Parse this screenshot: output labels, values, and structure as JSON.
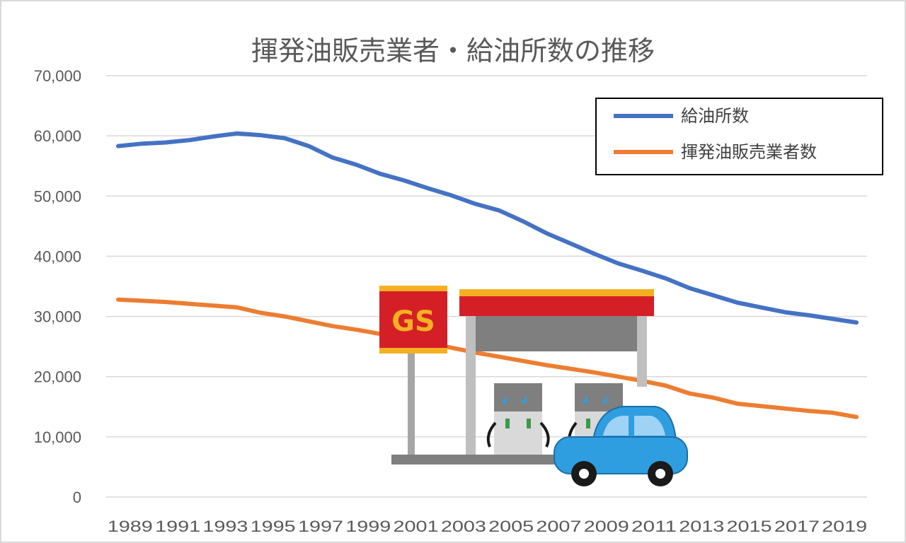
{
  "chart_data": {
    "type": "line",
    "title": "揮発油販売業者・給油所数の推移",
    "xlabel": "",
    "ylabel": "",
    "x": [
      1989,
      1990,
      1991,
      1992,
      1993,
      1994,
      1995,
      1996,
      1997,
      1998,
      1999,
      2000,
      2001,
      2002,
      2003,
      2004,
      2005,
      2006,
      2007,
      2008,
      2009,
      2010,
      2011,
      2012,
      2013,
      2014,
      2015,
      2016,
      2017,
      2018,
      2019,
      2020
    ],
    "x_tick_labels": [
      "1989",
      "1991",
      "1993",
      "1995",
      "1997",
      "1999",
      "2001",
      "2003",
      "2005",
      "2007",
      "2009",
      "2011",
      "2013",
      "2015",
      "2017",
      "2019"
    ],
    "ylim": [
      0,
      70000
    ],
    "y_ticks": [
      0,
      10000,
      20000,
      30000,
      40000,
      50000,
      60000,
      70000
    ],
    "y_tick_labels": [
      "0",
      "10,000",
      "20,000",
      "30,000",
      "40,000",
      "50,000",
      "60,000",
      "70,000"
    ],
    "grid": true,
    "legend_position": "top-right",
    "series": [
      {
        "name": "給油所数",
        "color": "#4472c4",
        "values": [
          58300,
          58700,
          58900,
          59300,
          59900,
          60400,
          60100,
          59600,
          58300,
          56400,
          55200,
          53700,
          52600,
          51300,
          50100,
          48700,
          47600,
          45800,
          43800,
          42100,
          40400,
          38800,
          37600,
          36300,
          34700,
          33500,
          32300,
          31500,
          30700,
          30200,
          29600,
          29000
        ]
      },
      {
        "name": "揮発油販売業者数",
        "color": "#ed7d31",
        "values": [
          32800,
          32600,
          32400,
          32100,
          31800,
          31500,
          30600,
          30000,
          29200,
          28400,
          27800,
          27100,
          26400,
          25600,
          24800,
          24000,
          23300,
          22600,
          21900,
          21300,
          20700,
          20000,
          19300,
          18500,
          17200,
          16500,
          15500,
          15100,
          14700,
          14300,
          14000,
          13300
        ]
      }
    ]
  },
  "illustration": {
    "sign_text": "GS",
    "sign_color": "#d51f26",
    "sign_text_color": "#f5b021",
    "car_color": "#2f9ee0"
  }
}
